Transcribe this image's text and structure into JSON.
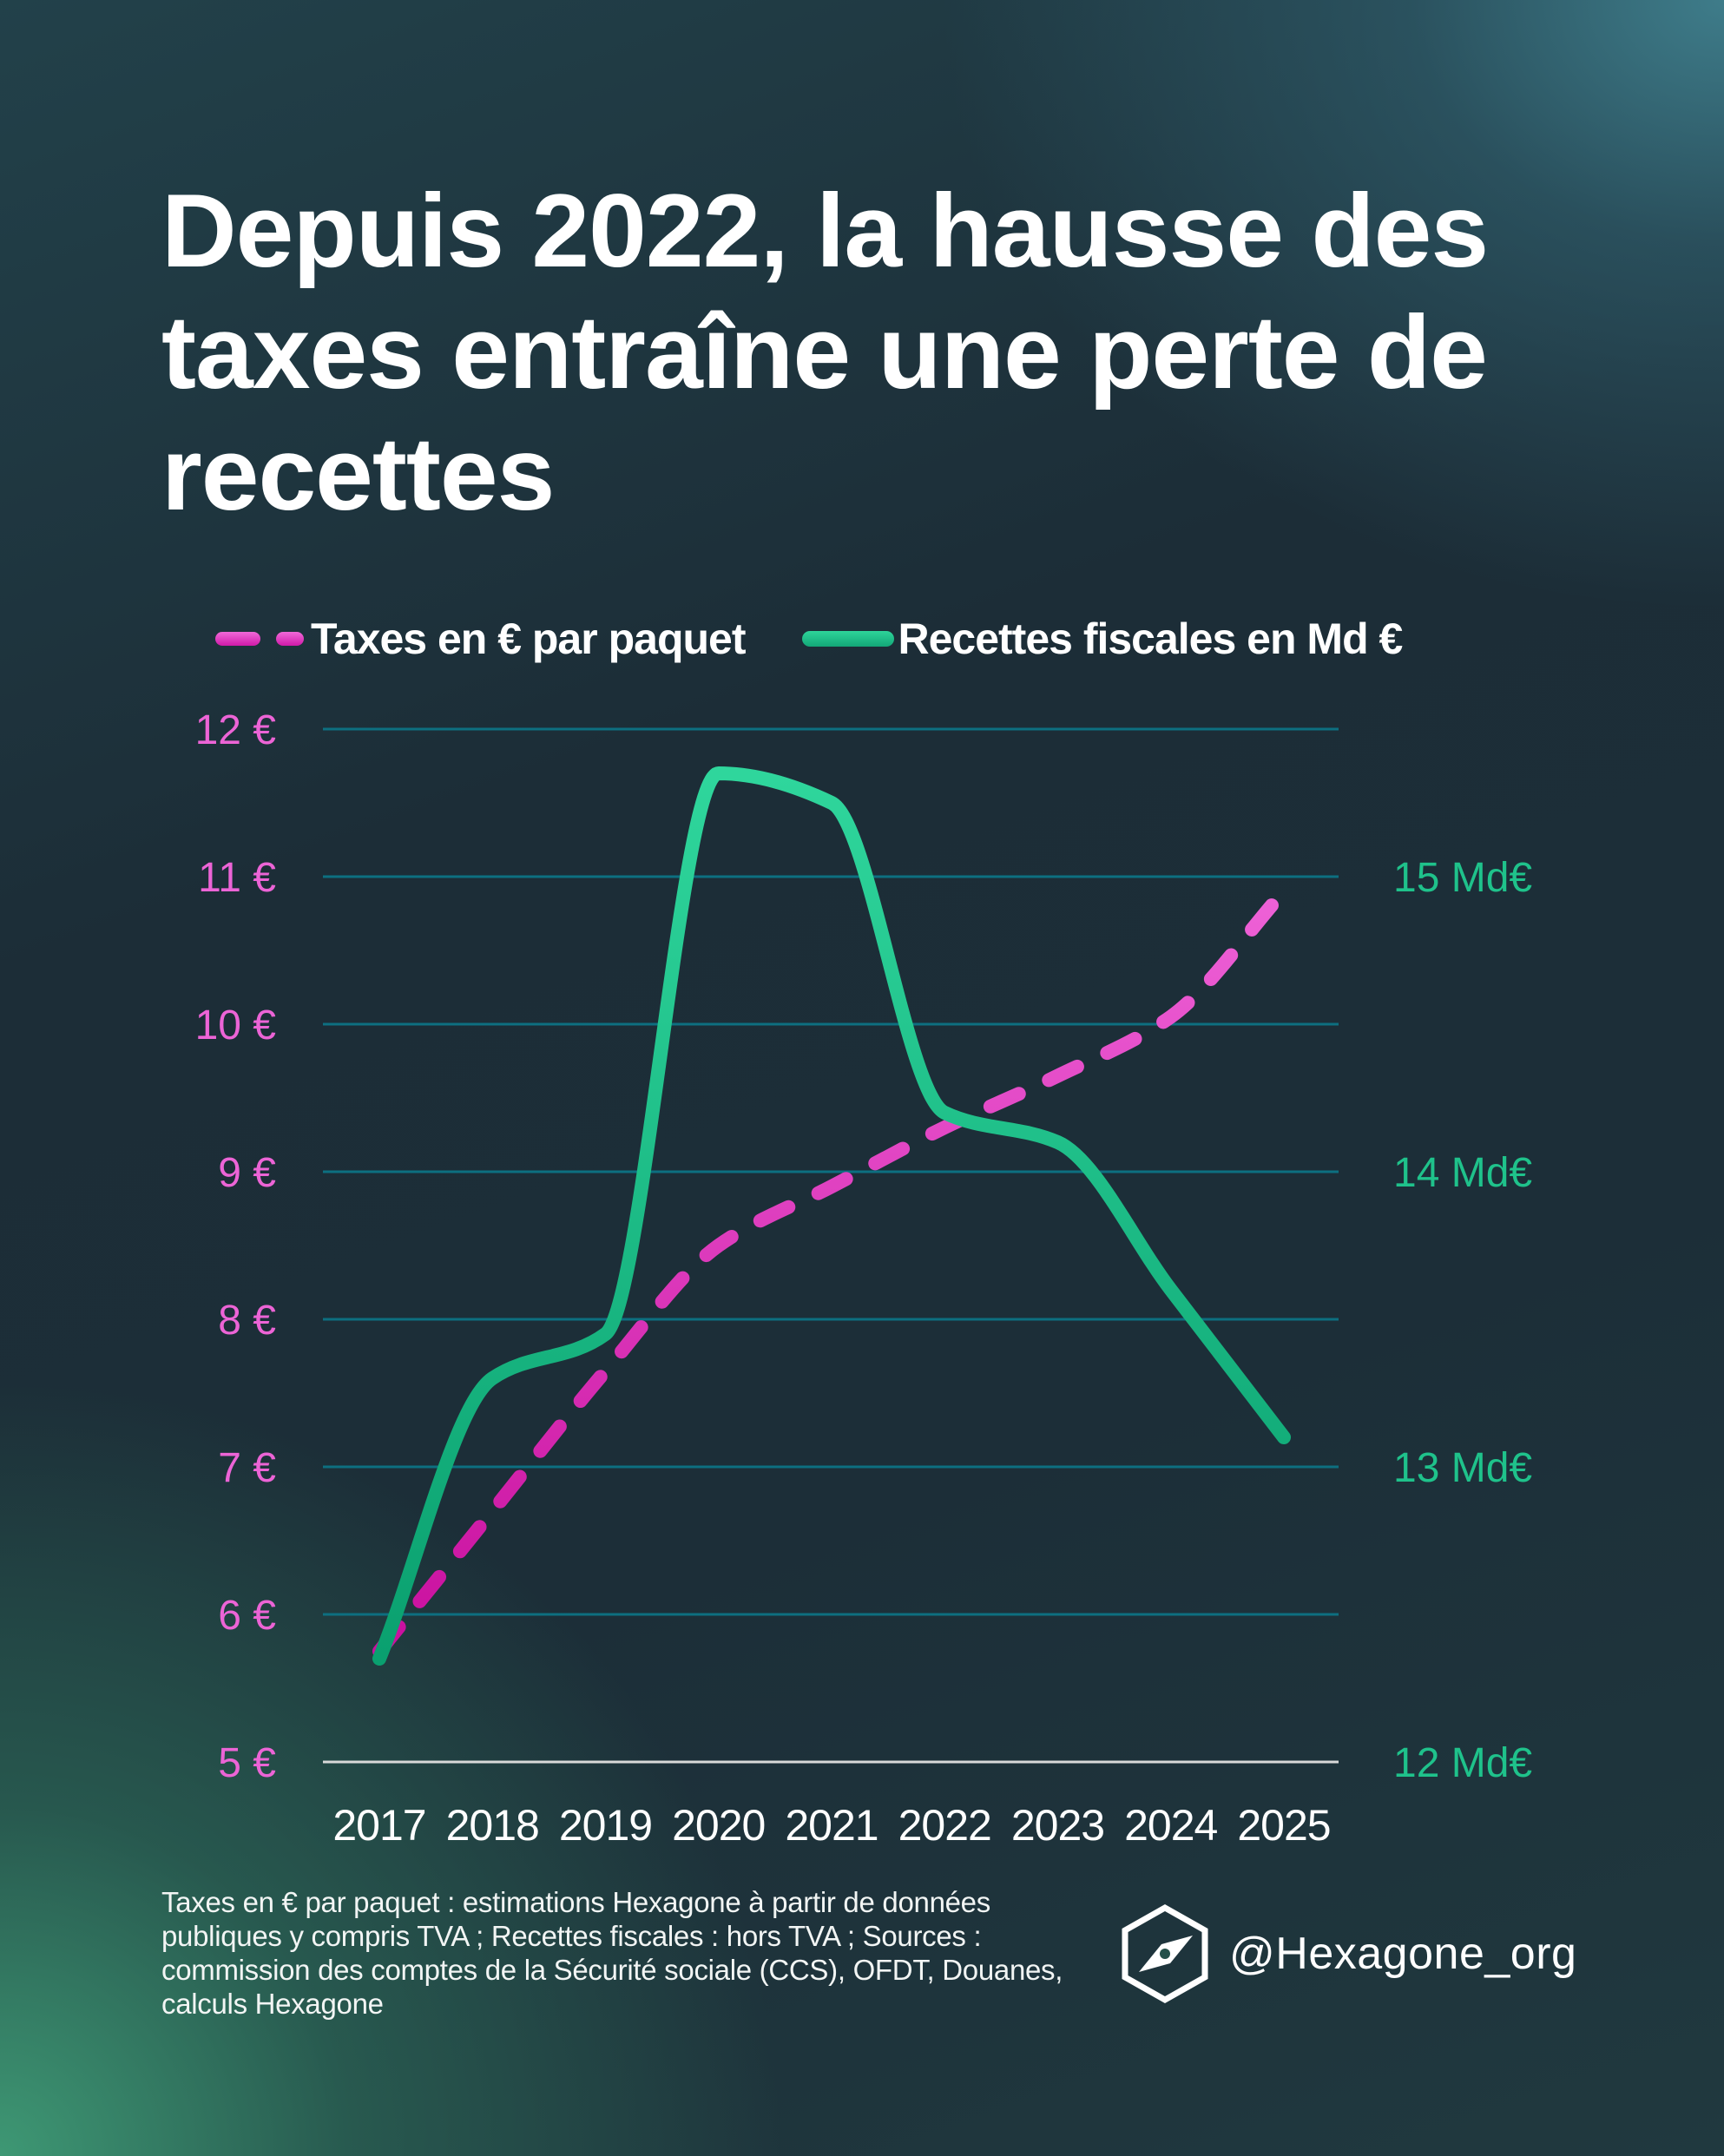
{
  "title": "Depuis 2022, la hausse des taxes entraîne une perte de recettes",
  "colors": {
    "taxes": "#e353cb",
    "taxes_dark": "#c3129f",
    "recettes": "#27cf97",
    "recettes_dark": "#0ea472",
    "grid": "#0d6f80",
    "baseline": "#d9d9d9",
    "text": "#ffffff"
  },
  "legend": {
    "taxes_label": "Taxes en € par paquet",
    "recettes_label": "Recettes fiscales en Md €"
  },
  "chart_data": {
    "type": "line",
    "title": "Depuis 2022, la hausse des taxes entraîne une perte de recettes",
    "x": [
      "2017",
      "2018",
      "2019",
      "2020",
      "2021",
      "2022",
      "2023",
      "2024",
      "2025"
    ],
    "series": [
      {
        "name": "Taxes en € par paquet",
        "axis": "left",
        "style": "dashed",
        "values": [
          5.75,
          6.7,
          7.65,
          8.5,
          8.9,
          9.3,
          9.65,
          10.05,
          10.9
        ]
      },
      {
        "name": "Recettes fiscales en Md €",
        "axis": "right",
        "style": "solid",
        "values": [
          12.35,
          13.3,
          13.45,
          15.35,
          15.25,
          14.2,
          14.1,
          13.6,
          13.1
        ]
      }
    ],
    "y_left": {
      "range": [
        5,
        12
      ],
      "ticks": [
        5,
        6,
        7,
        8,
        9,
        10,
        11,
        12
      ],
      "tick_labels": [
        "5 €",
        "6 €",
        "7 €",
        "8 €",
        "9 €",
        "10 €",
        "11 €",
        "12 €"
      ]
    },
    "y_right": {
      "range": [
        12,
        15.5
      ],
      "ticks": [
        12,
        13,
        14,
        15
      ],
      "tick_labels": [
        "12 Md€",
        "13 Md€",
        "14 Md€",
        "15 Md€"
      ]
    },
    "xlabel": "",
    "ylabel": "",
    "grid": true,
    "legend_position": "top"
  },
  "footnote": "Taxes en € par paquet : estimations Hexagone à partir de données publiques y compris TVA ; Recettes fiscales : hors TVA ; Sources : commission des comptes de la Sécurité sociale (CCS), OFDT, Douanes, calculs Hexagone",
  "brand": {
    "handle": "@Hexagone_org",
    "icon": "hexagon-compass-icon"
  }
}
